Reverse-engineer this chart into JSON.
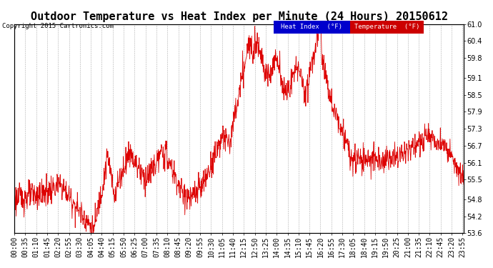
{
  "title": "Outdoor Temperature vs Heat Index per Minute (24 Hours) 20150612",
  "copyright_text": "Copyright 2015 Cartronics.com",
  "ylim": [
    53.6,
    61.0
  ],
  "yticks": [
    53.6,
    54.2,
    54.8,
    55.5,
    56.1,
    56.7,
    57.3,
    57.9,
    58.5,
    59.1,
    59.8,
    60.4,
    61.0
  ],
  "line_color": "#DD0000",
  "background_color": "#FFFFFF",
  "plot_bg_color": "#FFFFFF",
  "grid_color": "#999999",
  "legend_heat_index_bg": "#0000CC",
  "legend_temp_bg": "#CC0000",
  "legend_text_color": "#FFFFFF",
  "title_fontsize": 11,
  "tick_fontsize": 7,
  "minutes": 1440,
  "xtick_step": 35
}
